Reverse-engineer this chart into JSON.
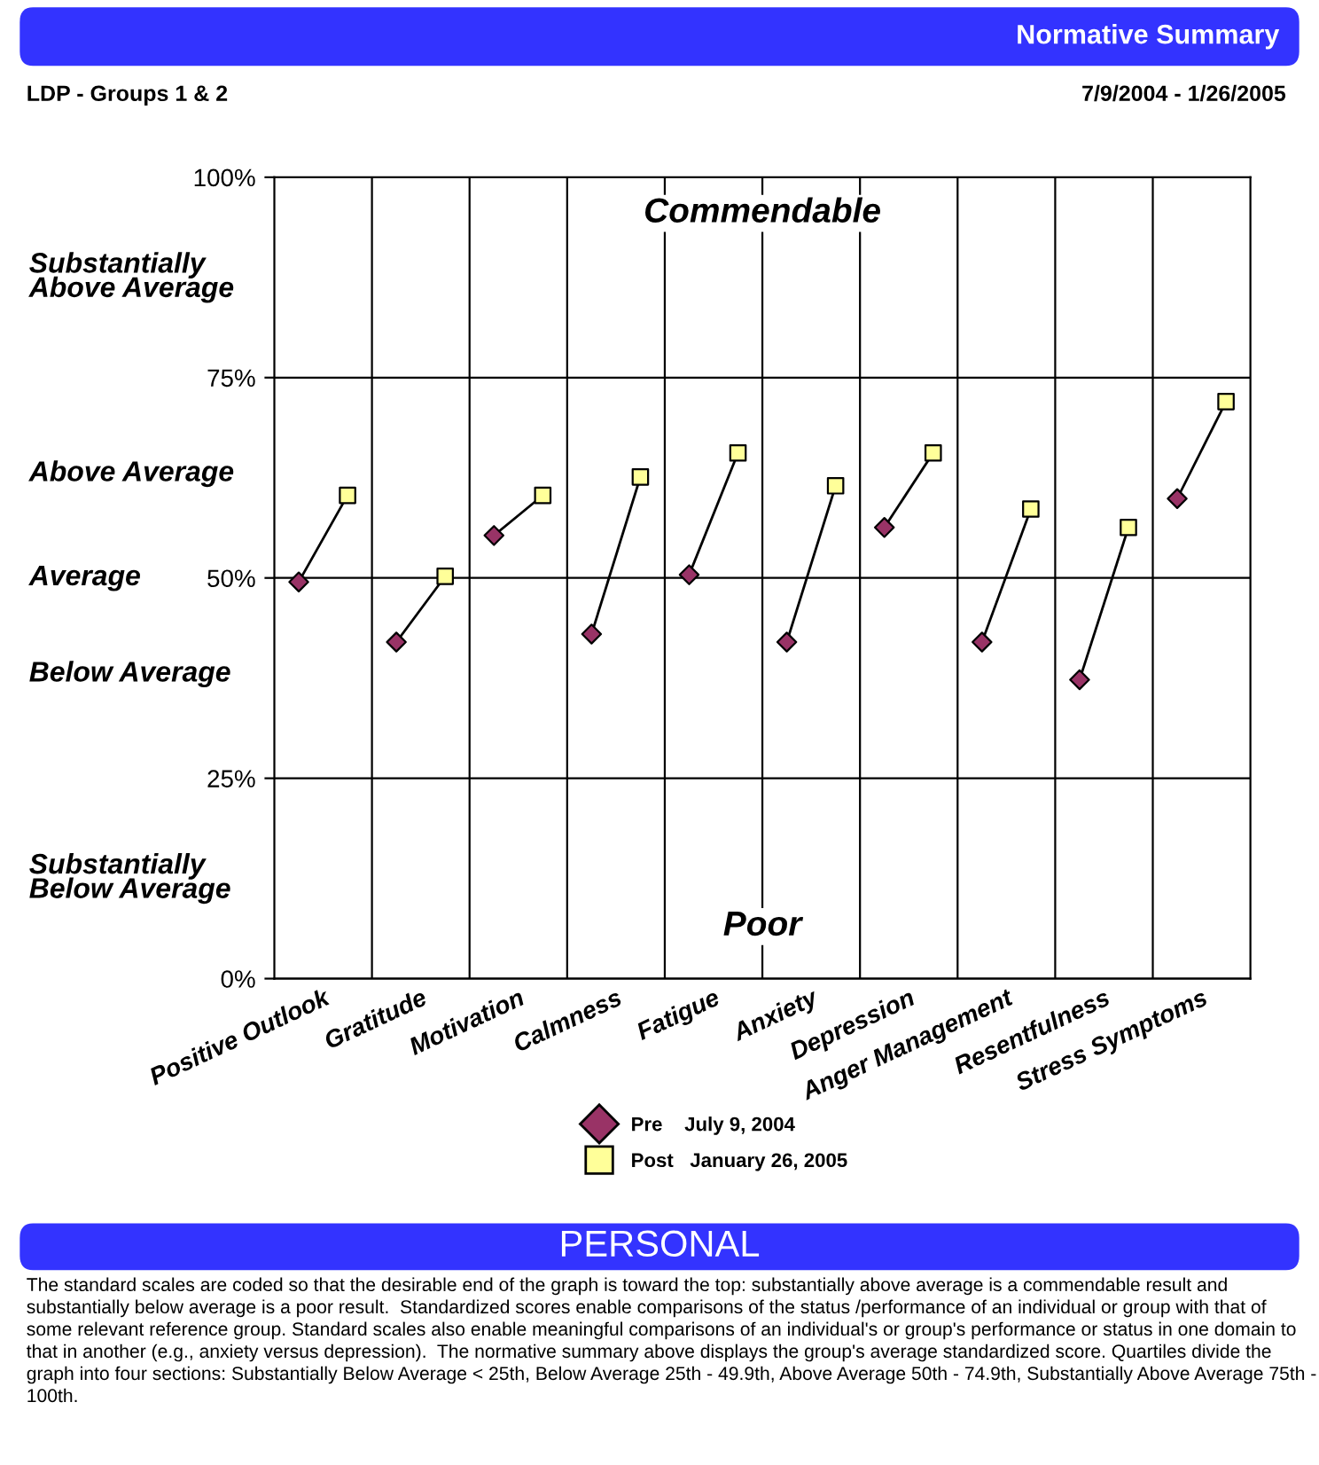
{
  "chart_data": {
    "type": "scatter",
    "title": "Normative Summary",
    "subtitle": "LDP - Groups 1 & 2",
    "categories": [
      "Positive Outlook",
      "Gratitude",
      "Motivation",
      "Calmness",
      "Fatigue",
      "Anxiety",
      "Depression",
      "Anger Management",
      "Resentfulness",
      "Stress Symptoms"
    ],
    "series": [
      {
        "name": "Pre    July 9, 2004",
        "color": "#993366",
        "marker": "diamond",
        "values": [
          49.5,
          42.0,
          55.3,
          43.0,
          50.4,
          42.0,
          56.3,
          42.0,
          37.3,
          59.9
        ]
      },
      {
        "name": "Post   January 26, 2005",
        "color": "#ffff99",
        "marker": "square",
        "values": [
          60.3,
          50.2,
          60.3,
          62.6,
          65.6,
          61.5,
          65.6,
          58.6,
          56.3,
          72.0
        ]
      }
    ],
    "ylim": [
      0,
      100
    ],
    "yticks": [
      {
        "value": 0,
        "label": "0%"
      },
      {
        "value": 25,
        "label": "25%"
      },
      {
        "value": 50,
        "label": "50%"
      },
      {
        "value": 75,
        "label": "75%"
      },
      {
        "value": 100,
        "label": "100%"
      }
    ],
    "grid": "y",
    "legend": "bottom",
    "annotations": [
      "7/9/2004 - 1/26/2005",
      "Commendable",
      "Poor",
      "Substantially\nAbove Average",
      "Above Average",
      "Average",
      "Below Average",
      "Substantially\nBelow Average",
      "PERSONAL",
      "The standard scales are coded so that the desirable end of the graph is toward the top: substantially above average is a commendable result and substantially below average is a poor result.  Standardized scores enable comparisons of the status /performance of an individual or group with that of some relevant reference group. Standard scales also enable meaningful comparisons of an individual's or group's performance or status in one domain to that in another (e.g., anxiety versus depression).  The normative summary above displays the group's average standardized score. Quartiles divide the graph into four sections: Substantially Below Average < 25th, Below Average 25th - 49.9th, Above Average 50th - 74.9th, Substantially Above Average 75th - 100th."
    ]
  }
}
